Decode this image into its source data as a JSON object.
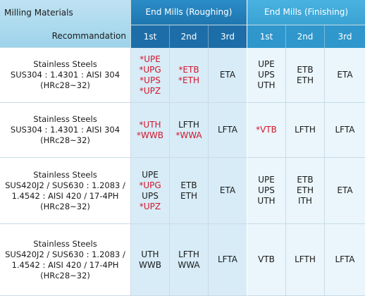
{
  "header": {
    "corner_top": "Milling Materials",
    "corner_bottom": "Recommandation",
    "group_roughing": "End Mills (Roughing)",
    "group_finishing": "End Mills (Finishing)",
    "sub": [
      "1st",
      "2nd",
      "3rd",
      "1st",
      "2nd",
      "3rd"
    ]
  },
  "colors": {
    "header_dark": "#1f6fa8",
    "header_mid": "#1f83bf",
    "header_light": "#39a3d6",
    "corner": "#a9d9ee",
    "roughing_bg": "#d7ecf7",
    "finishing_bg": "#eaf6fc",
    "red_text": "#d3162c"
  },
  "rows": [
    {
      "material": [
        "Stainless Steels",
        "SUS304 : 1.4301 : AISI 304",
        "(HRc28~32)"
      ],
      "cells": [
        [
          {
            "t": "*UPE",
            "r": true
          },
          {
            "t": "*UPG",
            "r": true
          },
          {
            "t": "*UPS",
            "r": true
          },
          {
            "t": "*UPZ",
            "r": true
          }
        ],
        [
          {
            "t": "*ETB",
            "r": true
          },
          {
            "t": "*ETH",
            "r": true
          }
        ],
        [
          {
            "t": "ETA",
            "r": false
          }
        ],
        [
          {
            "t": "UPE",
            "r": false
          },
          {
            "t": "UPS",
            "r": false
          },
          {
            "t": "UTH",
            "r": false
          }
        ],
        [
          {
            "t": "ETB",
            "r": false
          },
          {
            "t": "ETH",
            "r": false
          }
        ],
        [
          {
            "t": "ETA",
            "r": false
          }
        ]
      ]
    },
    {
      "material": [
        "Stainless Steels",
        "SUS304 : 1.4301 : AISI 304",
        "(HRc28~32)"
      ],
      "cells": [
        [
          {
            "t": "*UTH",
            "r": true
          },
          {
            "t": "*WWB",
            "r": true
          }
        ],
        [
          {
            "t": "LFTH",
            "r": false
          },
          {
            "t": "*WWA",
            "r": true
          }
        ],
        [
          {
            "t": "LFTA",
            "r": false
          }
        ],
        [
          {
            "t": "*VTB",
            "r": true
          }
        ],
        [
          {
            "t": "LFTH",
            "r": false
          }
        ],
        [
          {
            "t": "LFTA",
            "r": false
          }
        ]
      ]
    },
    {
      "material": [
        "Stainless Steels",
        "SUS420J2 / SUS630 : 1.2083 /",
        "1.4542 : AISI 420 / 17-4PH",
        "(HRc28~32)"
      ],
      "cells": [
        [
          {
            "t": "UPE",
            "r": false
          },
          {
            "t": "*UPG",
            "r": true
          },
          {
            "t": "UPS",
            "r": false
          },
          {
            "t": "*UPZ",
            "r": true
          }
        ],
        [
          {
            "t": "ETB",
            "r": false
          },
          {
            "t": "ETH",
            "r": false
          }
        ],
        [
          {
            "t": "ETA",
            "r": false
          }
        ],
        [
          {
            "t": "UPE",
            "r": false
          },
          {
            "t": "UPS",
            "r": false
          },
          {
            "t": "UTH",
            "r": false
          }
        ],
        [
          {
            "t": "ETB",
            "r": false
          },
          {
            "t": "ETH",
            "r": false
          },
          {
            "t": "ITH",
            "r": false
          }
        ],
        [
          {
            "t": "ETA",
            "r": false
          }
        ]
      ]
    },
    {
      "material": [
        "Stainless Steels",
        "SUS420J2 / SUS630 : 1.2083 /",
        "1.4542 : AISI 420 / 17-4PH",
        "(HRc28~32)"
      ],
      "cells": [
        [
          {
            "t": "UTH",
            "r": false
          },
          {
            "t": "WWB",
            "r": false
          }
        ],
        [
          {
            "t": "LFTH",
            "r": false
          },
          {
            "t": "WWA",
            "r": false
          }
        ],
        [
          {
            "t": "LFTA",
            "r": false
          }
        ],
        [
          {
            "t": "VTB",
            "r": false
          }
        ],
        [
          {
            "t": "LFTH",
            "r": false
          }
        ],
        [
          {
            "t": "LFTA",
            "r": false
          }
        ]
      ]
    }
  ]
}
